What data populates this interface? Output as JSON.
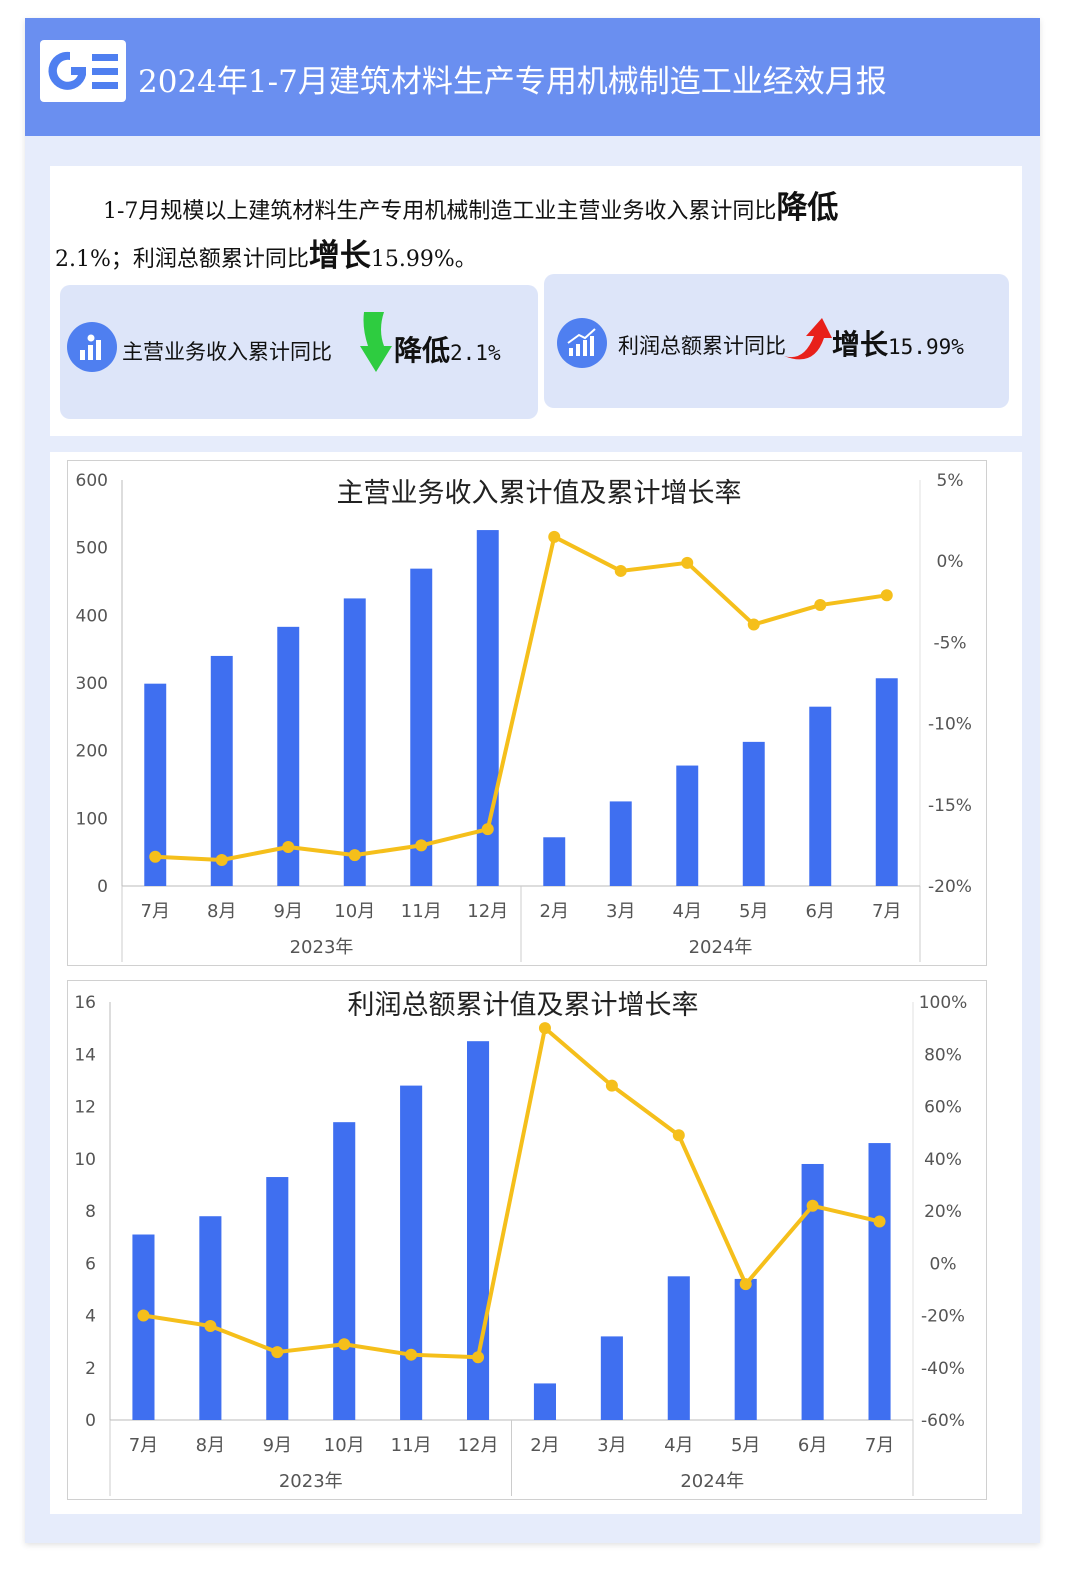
{
  "header": {
    "title": "2024年1-7月建筑材料生产专用机械制造工业经效月报",
    "logo_icon": "ge-logo-icon"
  },
  "summary": {
    "part1": "1-7月规模以上建筑材料生产专用机械制造工业主营业务收入累计同比",
    "verb1": "降低",
    "part2": "2.1%；利润总额累计同比",
    "verb2": "增长",
    "part3": "15.99%。"
  },
  "stats": [
    {
      "label": "主营业务收入累计同比",
      "verb": "降低",
      "value": "2.1%",
      "arrow": "down-arrow-icon",
      "arrow_color": "#2ecc40"
    },
    {
      "label": "利润总额累计同比",
      "verb": "增长",
      "value": "15.99%",
      "arrow": "up-arrow-icon",
      "arrow_color": "#e8201a"
    }
  ],
  "colors": {
    "bar": "#3f6ff0",
    "line": "#f5bf1b",
    "header": "#6a8ff0",
    "accent": "#4f7ff0"
  },
  "chart_data": [
    {
      "type": "bar",
      "title": "主营业务收入累计值及累计增长率",
      "categories": [
        "7月",
        "8月",
        "9月",
        "10月",
        "11月",
        "12月",
        "2月",
        "3月",
        "4月",
        "5月",
        "6月",
        "7月"
      ],
      "groups": [
        {
          "label": "2023年",
          "count": 6
        },
        {
          "label": "2024年",
          "count": 6
        }
      ],
      "series": [
        {
          "type": "bar",
          "axis": "left",
          "values": [
            299,
            340,
            383,
            425,
            469,
            526,
            72,
            125,
            178,
            213,
            265,
            307
          ]
        },
        {
          "type": "line",
          "axis": "right",
          "values": [
            -18.2,
            -18.4,
            -17.6,
            -18.1,
            -17.5,
            -16.5,
            1.5,
            -0.6,
            -0.1,
            -3.9,
            -2.7,
            -2.1
          ]
        }
      ],
      "ylim": [
        0,
        600
      ],
      "y2lim": [
        -20,
        5
      ],
      "yticks": [
        0,
        100,
        200,
        300,
        400,
        500,
        600
      ],
      "y2ticks": [
        "-20%",
        "-15%",
        "-10%",
        "-5%",
        "0%",
        "5%"
      ]
    },
    {
      "type": "bar",
      "title": "利润总额累计值及累计增长率",
      "categories": [
        "7月",
        "8月",
        "9月",
        "10月",
        "11月",
        "12月",
        "2月",
        "3月",
        "4月",
        "5月",
        "6月",
        "7月"
      ],
      "groups": [
        {
          "label": "2023年",
          "count": 6
        },
        {
          "label": "2024年",
          "count": 6
        }
      ],
      "series": [
        {
          "type": "bar",
          "axis": "left",
          "values": [
            7.1,
            7.8,
            9.3,
            11.4,
            12.8,
            14.5,
            1.4,
            3.2,
            5.5,
            5.4,
            9.8,
            10.6
          ]
        },
        {
          "type": "line",
          "axis": "right",
          "values": [
            -20,
            -24,
            -34,
            -31,
            -35,
            -36,
            90,
            68,
            49,
            -8,
            22,
            16
          ]
        }
      ],
      "ylim": [
        0,
        16
      ],
      "y2lim": [
        -60,
        100
      ],
      "yticks": [
        0,
        2,
        4,
        6,
        8,
        10,
        12,
        14,
        16
      ],
      "y2ticks": [
        "-60%",
        "-40%",
        "-20%",
        "0%",
        "20%",
        "40%",
        "60%",
        "80%",
        "100%"
      ]
    }
  ]
}
